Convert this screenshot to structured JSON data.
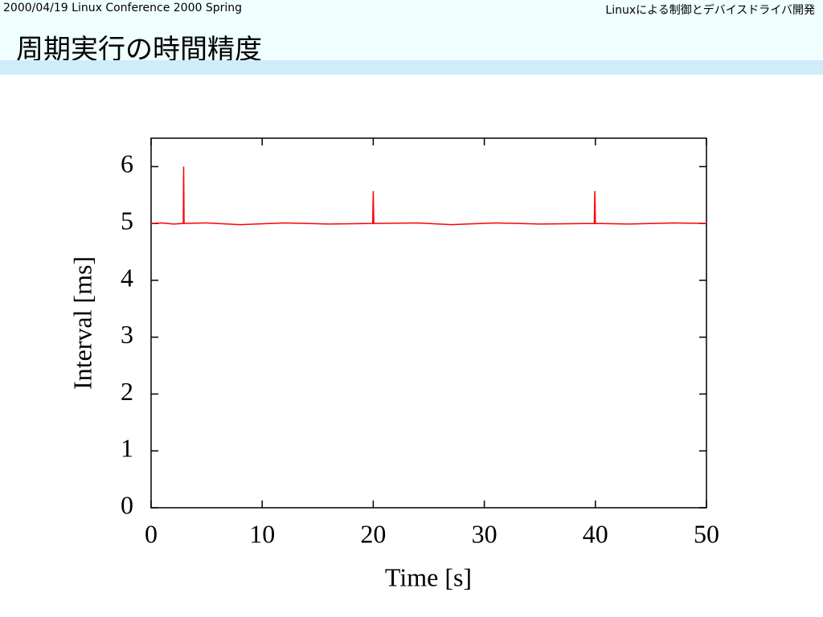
{
  "header": {
    "left": "2000/04/19 Linux Conference 2000 Spring",
    "right": "Linuxによる制御とデバイスドライバ開発",
    "title": "周期実行の時間精度"
  },
  "chart_data": {
    "type": "line",
    "xlabel": "Time [s]",
    "ylabel": "Interval [ms]",
    "color": "#ff0000",
    "x": [
      0,
      1,
      2,
      2.9,
      2.93,
      2.97,
      5,
      8,
      12,
      16,
      19.95,
      20.0,
      20.05,
      24,
      27,
      31,
      35,
      39.9,
      39.95,
      40.0,
      43,
      47,
      50
    ],
    "values": [
      5.0,
      5.01,
      4.99,
      5.0,
      6.0,
      5.0,
      5.01,
      4.98,
      5.01,
      4.99,
      5.0,
      5.57,
      5.0,
      5.01,
      4.98,
      5.01,
      4.99,
      5.0,
      5.57,
      5.0,
      4.99,
      5.01,
      5.0
    ],
    "xlim": [
      0,
      50
    ],
    "xticks": [
      0,
      10,
      20,
      30,
      40,
      50
    ],
    "ylim": [
      0,
      6.5
    ],
    "yticks": [
      0,
      1,
      2,
      3,
      4,
      5,
      6
    ]
  }
}
